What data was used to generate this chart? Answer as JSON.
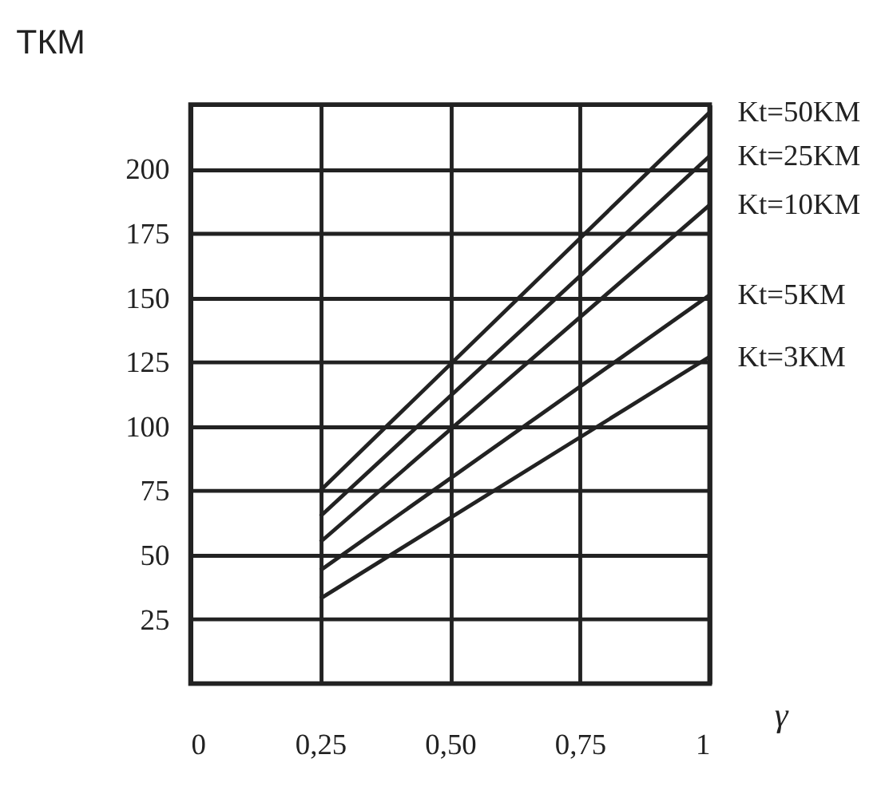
{
  "chart_data": {
    "type": "line",
    "title": "ТКМ",
    "xlabel": "γ",
    "x": [
      0.25,
      1
    ],
    "series": [
      {
        "name": "Kt=50KM",
        "color": "#222222",
        "values": [
          75,
          222
        ]
      },
      {
        "name": "Kt=25KM",
        "color": "#222222",
        "values": [
          65,
          205
        ]
      },
      {
        "name": "Kt=10KM",
        "color": "#222222",
        "values": [
          55,
          186
        ]
      },
      {
        "name": "Kt=5KM",
        "color": "#222222",
        "values": [
          44,
          151
        ]
      },
      {
        "name": "Kt=3KM",
        "color": "#222222",
        "values": [
          33,
          127
        ]
      }
    ],
    "xlim": [
      0,
      1
    ],
    "ylim": [
      0,
      225
    ],
    "xticks": [
      0,
      {
        "value": 0.25,
        "label": "0,25"
      },
      {
        "value": 0.5,
        "label": "0,50"
      },
      {
        "value": 0.75,
        "label": "0,75"
      },
      1
    ],
    "yticks": [
      25,
      50,
      75,
      100,
      125,
      150,
      175,
      200
    ],
    "grid": true,
    "legend": false,
    "marker": "none",
    "line_style": "solid"
  }
}
